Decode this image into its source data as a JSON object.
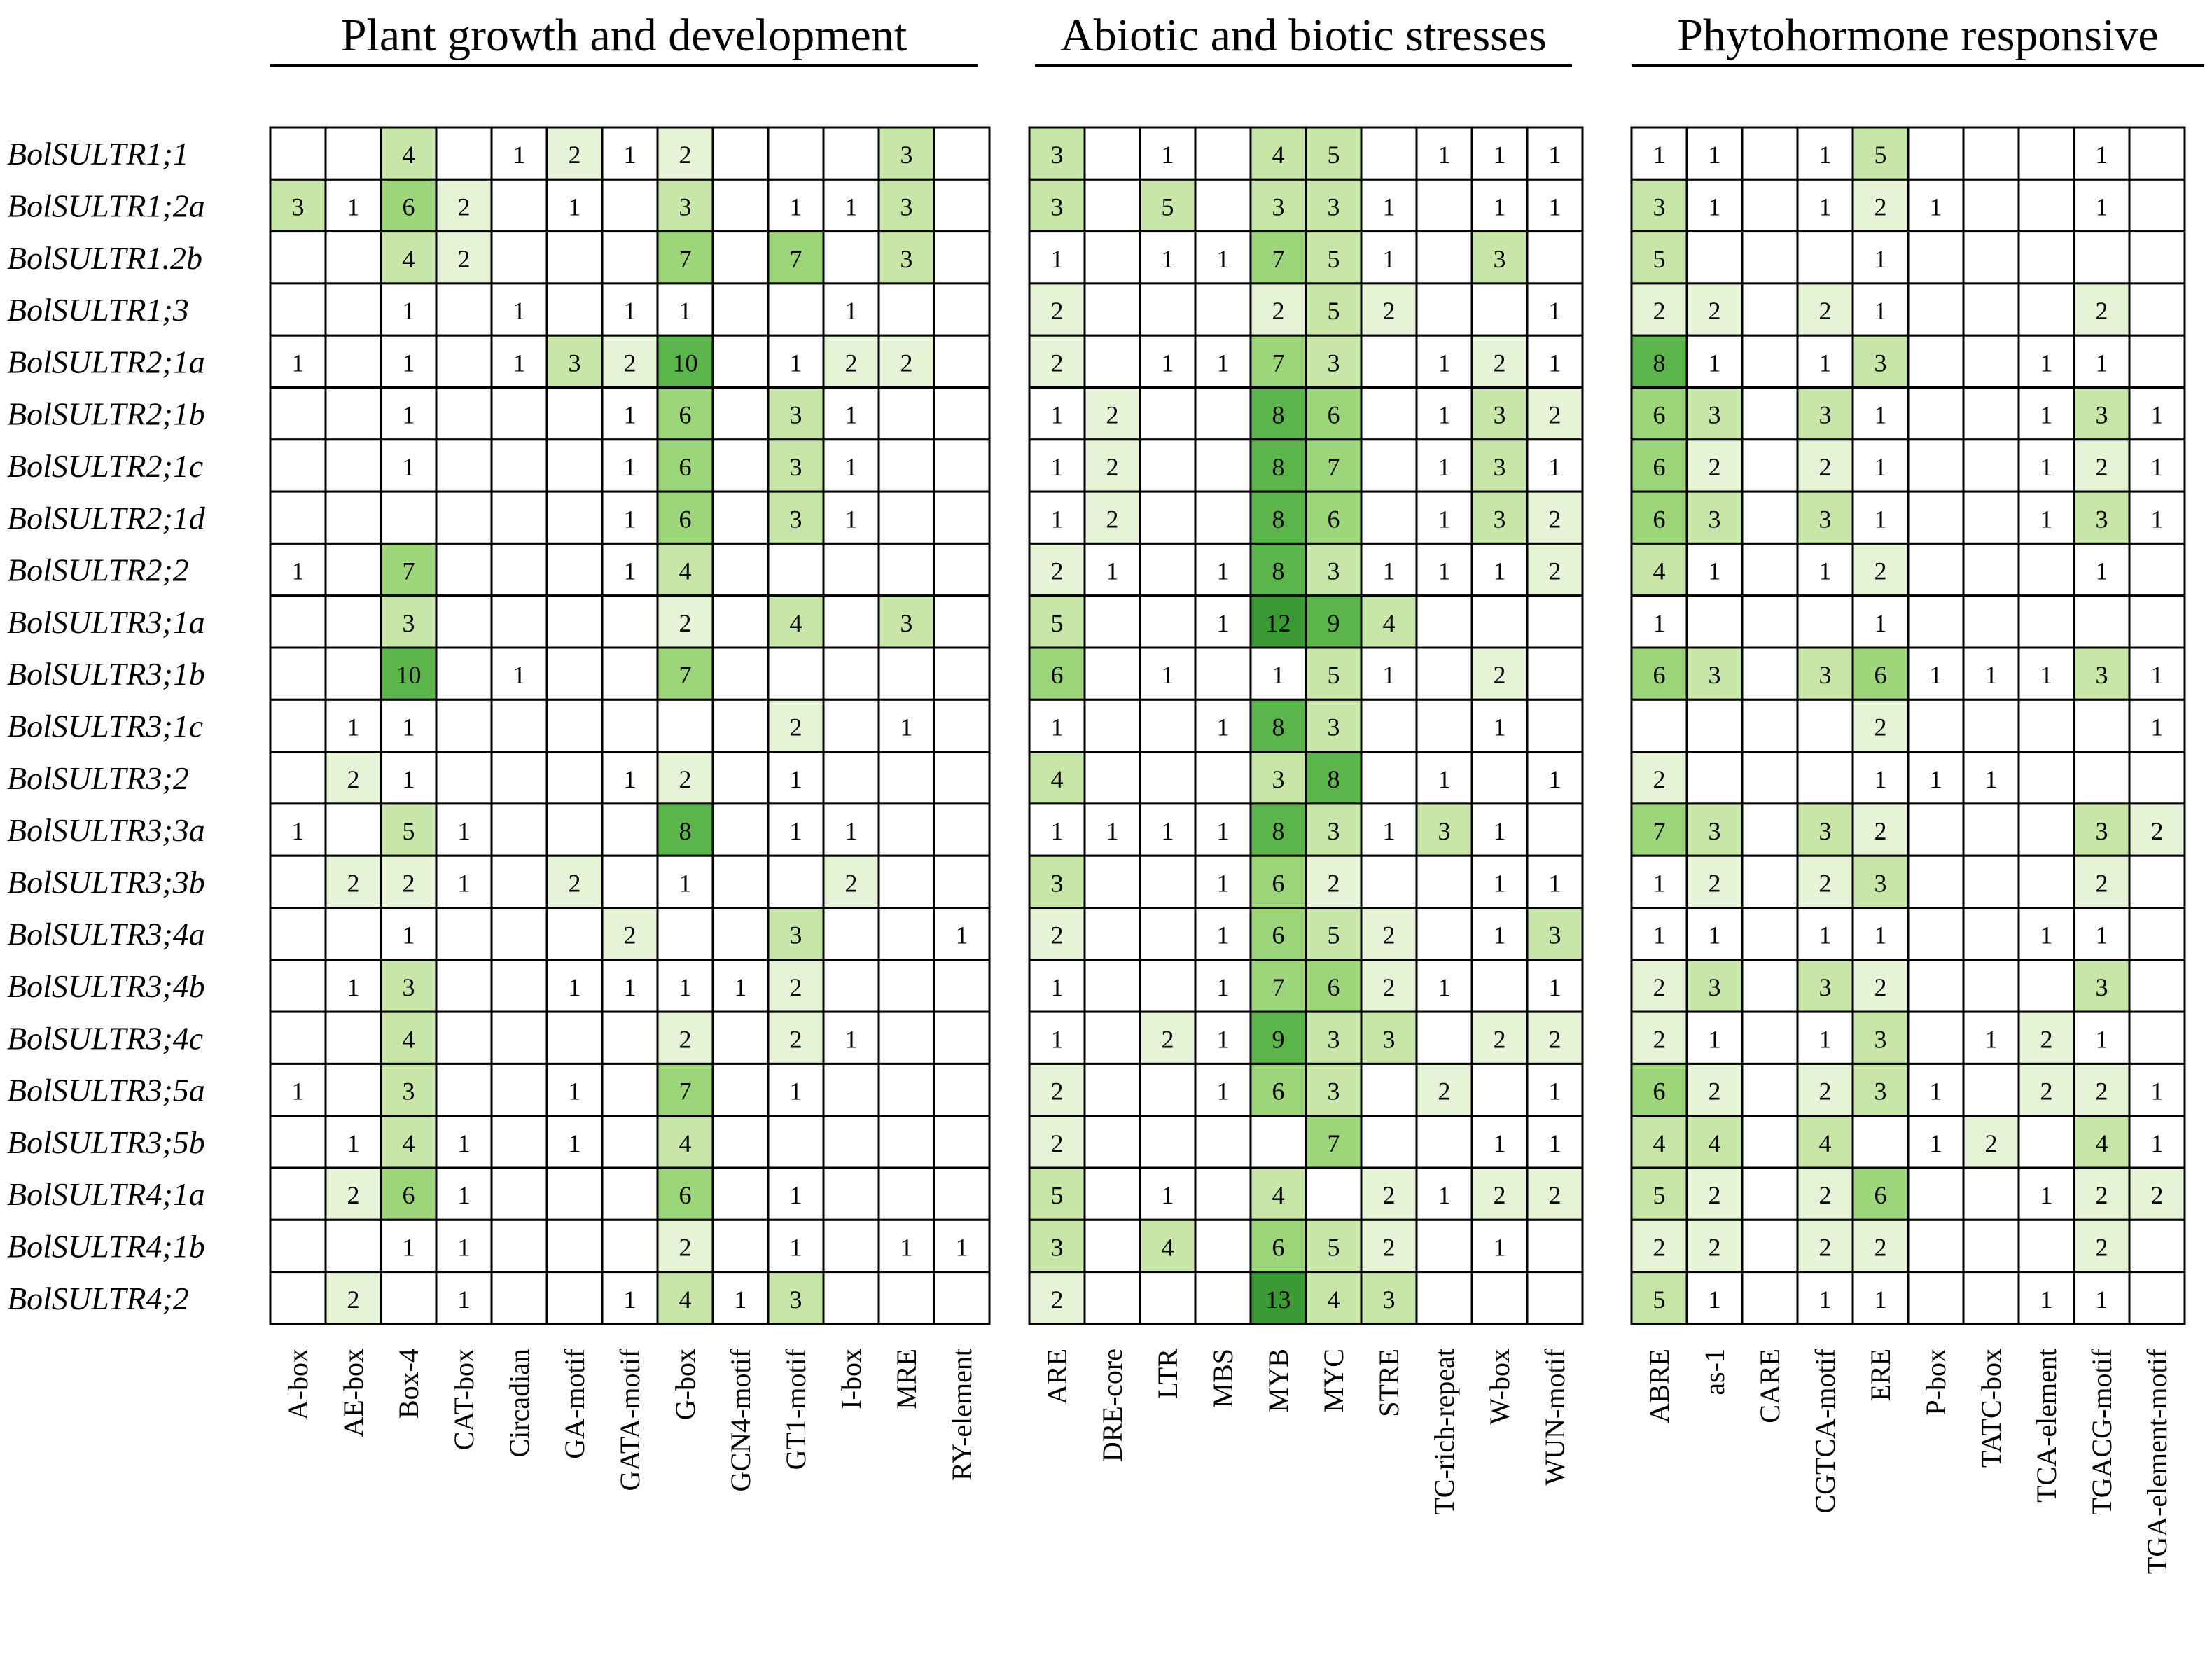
{
  "chart_data": {
    "type": "heatmap",
    "color_scale": [
      "#ffffff",
      "#e6f3d7",
      "#c7e6a7",
      "#9dd57a",
      "#5cb54b",
      "#3c9a35"
    ],
    "rows": [
      "BolSULTR1;1",
      "BolSULTR1;2a",
      "BolSULTR1.2b",
      "BolSULTR1;3",
      "BolSULTR2;1a",
      "BolSULTR2;1b",
      "BolSULTR2;1c",
      "BolSULTR2;1d",
      "BolSULTR2;2",
      "BolSULTR3;1a",
      "BolSULTR3;1b",
      "BolSULTR3;1c",
      "BolSULTR3;2",
      "BolSULTR3;3a",
      "BolSULTR3;3b",
      "BolSULTR3;4a",
      "BolSULTR3;4b",
      "BolSULTR3;4c",
      "BolSULTR3;5a",
      "BolSULTR3;5b",
      "BolSULTR4;1a",
      "BolSULTR4;1b",
      "BolSULTR4;2"
    ],
    "groups": [
      {
        "title": "Plant growth and development",
        "columns": [
          "A-box",
          "AE-box",
          "Box-4",
          "CAT-box",
          "Circadian",
          "GA-motif",
          "GATA-motif",
          "G-box",
          "GCN4-motif",
          "GT1-motif",
          "I-box",
          "MRE",
          "RY-element"
        ],
        "values": [
          [
            null,
            null,
            4,
            null,
            1,
            2,
            1,
            2,
            null,
            null,
            null,
            3,
            null
          ],
          [
            3,
            1,
            6,
            2,
            null,
            1,
            null,
            3,
            null,
            1,
            1,
            3,
            null
          ],
          [
            null,
            null,
            4,
            2,
            null,
            null,
            null,
            7,
            null,
            7,
            null,
            3,
            null
          ],
          [
            null,
            null,
            1,
            null,
            1,
            null,
            1,
            1,
            null,
            null,
            1,
            null,
            null
          ],
          [
            1,
            null,
            1,
            null,
            1,
            3,
            2,
            10,
            null,
            1,
            2,
            2,
            null
          ],
          [
            null,
            null,
            1,
            null,
            null,
            null,
            1,
            6,
            null,
            3,
            1,
            null,
            null
          ],
          [
            null,
            null,
            1,
            null,
            null,
            null,
            1,
            6,
            null,
            3,
            1,
            null,
            null
          ],
          [
            null,
            null,
            null,
            null,
            null,
            null,
            1,
            6,
            null,
            3,
            1,
            null,
            null
          ],
          [
            1,
            null,
            7,
            null,
            null,
            null,
            1,
            4,
            null,
            null,
            null,
            null,
            null
          ],
          [
            null,
            null,
            3,
            null,
            null,
            null,
            null,
            2,
            null,
            4,
            null,
            3,
            null
          ],
          [
            null,
            null,
            10,
            null,
            1,
            null,
            null,
            7,
            null,
            null,
            null,
            null,
            null
          ],
          [
            null,
            1,
            1,
            null,
            null,
            null,
            null,
            null,
            null,
            2,
            null,
            1,
            null
          ],
          [
            null,
            2,
            1,
            null,
            null,
            null,
            1,
            2,
            null,
            1,
            null,
            null,
            null
          ],
          [
            1,
            null,
            5,
            1,
            null,
            null,
            null,
            8,
            null,
            1,
            1,
            null,
            null
          ],
          [
            null,
            2,
            2,
            1,
            null,
            2,
            null,
            1,
            null,
            null,
            2,
            null,
            null
          ],
          [
            null,
            null,
            1,
            null,
            null,
            null,
            2,
            null,
            null,
            3,
            null,
            null,
            1
          ],
          [
            null,
            1,
            3,
            null,
            null,
            1,
            1,
            1,
            1,
            2,
            null,
            null,
            null
          ],
          [
            null,
            null,
            4,
            null,
            null,
            null,
            null,
            2,
            null,
            2,
            1,
            null,
            null
          ],
          [
            1,
            null,
            3,
            null,
            null,
            1,
            null,
            7,
            null,
            1,
            null,
            null,
            null
          ],
          [
            null,
            1,
            4,
            1,
            null,
            1,
            null,
            4,
            null,
            null,
            null,
            null,
            null
          ],
          [
            null,
            2,
            6,
            1,
            null,
            null,
            null,
            6,
            null,
            1,
            null,
            null,
            null
          ],
          [
            null,
            null,
            1,
            1,
            null,
            null,
            null,
            2,
            null,
            1,
            null,
            1,
            1
          ],
          [
            null,
            2,
            null,
            1,
            null,
            null,
            1,
            4,
            1,
            3,
            null,
            null,
            null
          ]
        ]
      },
      {
        "title": "Abiotic and biotic stresses",
        "columns": [
          "ARE",
          "DRE-core",
          "LTR",
          "MBS",
          "MYB",
          "MYC",
          "STRE",
          "TC-rich-repeat",
          "W-box",
          "WUN-motif"
        ],
        "values": [
          [
            3,
            null,
            1,
            null,
            4,
            5,
            null,
            1,
            1,
            1
          ],
          [
            3,
            null,
            5,
            null,
            3,
            3,
            1,
            null,
            1,
            1
          ],
          [
            1,
            null,
            1,
            1,
            7,
            5,
            1,
            null,
            3,
            null
          ],
          [
            2,
            null,
            null,
            null,
            2,
            5,
            2,
            null,
            null,
            1
          ],
          [
            2,
            null,
            1,
            1,
            7,
            3,
            null,
            1,
            2,
            1
          ],
          [
            1,
            2,
            null,
            null,
            8,
            6,
            null,
            1,
            3,
            2
          ],
          [
            1,
            2,
            null,
            null,
            8,
            7,
            null,
            1,
            3,
            1
          ],
          [
            1,
            2,
            null,
            null,
            8,
            6,
            null,
            1,
            3,
            2
          ],
          [
            2,
            1,
            null,
            1,
            8,
            3,
            1,
            1,
            1,
            2
          ],
          [
            5,
            null,
            null,
            1,
            12,
            9,
            4,
            null,
            null,
            null
          ],
          [
            6,
            null,
            1,
            null,
            1,
            5,
            1,
            null,
            2,
            null
          ],
          [
            1,
            null,
            null,
            1,
            8,
            3,
            null,
            null,
            1,
            null
          ],
          [
            4,
            null,
            null,
            null,
            3,
            8,
            null,
            1,
            null,
            1
          ],
          [
            1,
            1,
            1,
            1,
            8,
            3,
            1,
            3,
            1,
            null
          ],
          [
            3,
            null,
            null,
            1,
            6,
            2,
            null,
            null,
            1,
            1
          ],
          [
            2,
            null,
            null,
            1,
            6,
            5,
            2,
            null,
            1,
            3
          ],
          [
            1,
            null,
            null,
            1,
            7,
            6,
            2,
            1,
            null,
            1
          ],
          [
            1,
            null,
            2,
            1,
            9,
            3,
            3,
            null,
            2,
            2
          ],
          [
            2,
            null,
            null,
            1,
            6,
            3,
            null,
            2,
            null,
            1
          ],
          [
            2,
            null,
            null,
            null,
            null,
            7,
            null,
            null,
            1,
            1
          ],
          [
            5,
            null,
            1,
            null,
            4,
            null,
            2,
            1,
            2,
            2
          ],
          [
            3,
            null,
            4,
            null,
            6,
            5,
            2,
            null,
            1,
            null
          ],
          [
            2,
            null,
            null,
            null,
            13,
            4,
            3,
            null,
            null,
            null
          ]
        ]
      },
      {
        "title": "Phytohormone responsive",
        "columns": [
          "ABRE",
          "as-1",
          "CARE",
          "CGTCA-motif",
          "ERE",
          "P-box",
          "TATC-box",
          "TCA-element",
          "TGACG-motif",
          "TGA-element-motif"
        ],
        "values": [
          [
            1,
            1,
            null,
            1,
            5,
            null,
            null,
            null,
            1,
            null
          ],
          [
            3,
            1,
            null,
            1,
            2,
            1,
            null,
            null,
            1,
            null
          ],
          [
            5,
            null,
            null,
            null,
            1,
            null,
            null,
            null,
            null,
            null
          ],
          [
            2,
            2,
            null,
            2,
            1,
            null,
            null,
            null,
            2,
            null
          ],
          [
            8,
            1,
            null,
            1,
            3,
            null,
            null,
            1,
            1,
            null
          ],
          [
            6,
            3,
            null,
            3,
            1,
            null,
            null,
            1,
            3,
            1
          ],
          [
            6,
            2,
            null,
            2,
            1,
            null,
            null,
            1,
            2,
            1
          ],
          [
            6,
            3,
            null,
            3,
            1,
            null,
            null,
            1,
            3,
            1
          ],
          [
            4,
            1,
            null,
            1,
            2,
            null,
            null,
            null,
            1,
            null
          ],
          [
            1,
            null,
            null,
            null,
            1,
            null,
            null,
            null,
            null,
            null
          ],
          [
            6,
            3,
            null,
            3,
            6,
            1,
            1,
            1,
            3,
            1
          ],
          [
            null,
            null,
            null,
            null,
            2,
            null,
            null,
            null,
            null,
            1
          ],
          [
            2,
            null,
            null,
            null,
            1,
            1,
            1,
            null,
            null,
            null
          ],
          [
            7,
            3,
            null,
            3,
            2,
            null,
            null,
            null,
            3,
            2
          ],
          [
            1,
            2,
            null,
            2,
            3,
            null,
            null,
            null,
            2,
            null
          ],
          [
            1,
            1,
            null,
            1,
            1,
            null,
            null,
            1,
            1,
            null
          ],
          [
            2,
            3,
            null,
            3,
            2,
            null,
            null,
            null,
            3,
            null
          ],
          [
            2,
            1,
            null,
            1,
            3,
            null,
            1,
            2,
            1,
            null
          ],
          [
            6,
            2,
            null,
            2,
            3,
            1,
            null,
            2,
            2,
            1
          ],
          [
            4,
            4,
            null,
            4,
            null,
            1,
            2,
            null,
            4,
            1
          ],
          [
            5,
            2,
            null,
            2,
            6,
            null,
            null,
            1,
            2,
            2
          ],
          [
            2,
            2,
            null,
            2,
            2,
            null,
            null,
            null,
            2,
            null
          ],
          [
            5,
            1,
            null,
            1,
            1,
            null,
            null,
            1,
            1,
            null
          ]
        ]
      }
    ]
  }
}
